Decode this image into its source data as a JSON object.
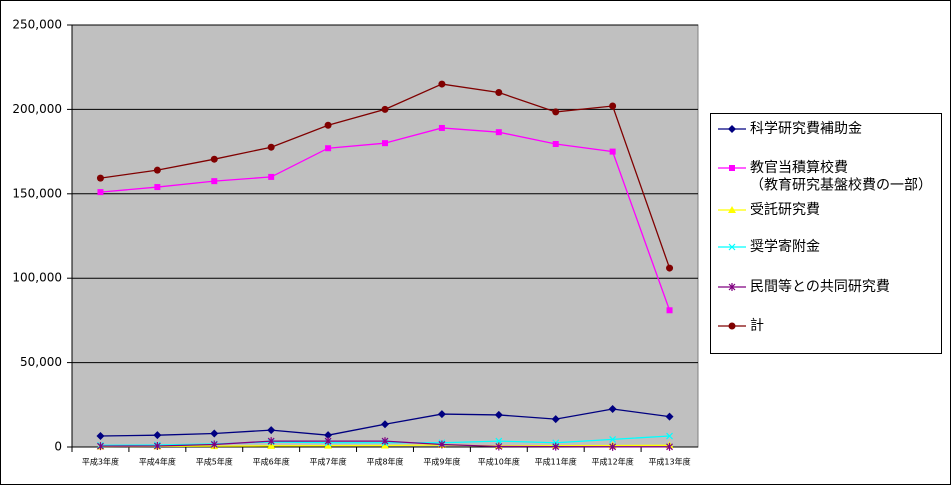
{
  "chart_data": {
    "type": "line",
    "categories": [
      "平成3年度",
      "平成4年度",
      "平成5年度",
      "平成6年度",
      "平成7年度",
      "平成8年度",
      "平成9年度",
      "平成10年度",
      "平成11年度",
      "平成12年度",
      "平成13年度"
    ],
    "ylim": [
      0,
      250000
    ],
    "yticks": [
      0,
      {
        "value": 50000,
        "label": "50,000"
      },
      {
        "value": 100000,
        "label": "100,000"
      },
      {
        "value": 150000,
        "label": "150,000"
      },
      {
        "value": 200000,
        "label": "200,000"
      },
      {
        "value": 250000,
        "label": "250,000"
      }
    ],
    "grid": true,
    "legend": "right",
    "series": [
      {
        "name": "科学研究費補助金",
        "color": "#000080",
        "marker": "diamond",
        "values": [
          6500,
          7000,
          8000,
          10000,
          7000,
          13500,
          19500,
          19000,
          16500,
          22500,
          18000
        ]
      },
      {
        "name": "教官当積算校費\n（教育研究基盤校費の一部）",
        "color": "#ff00ff",
        "marker": "square",
        "values": [
          151000,
          154000,
          157500,
          160000,
          177000,
          180000,
          189000,
          186500,
          179500,
          175000,
          81000
        ]
      },
      {
        "name": "受託研究費",
        "color": "#ffff00",
        "marker": "triangle",
        "values": [
          300,
          400,
          500,
          700,
          800,
          900,
          1200,
          600,
          800,
          900,
          1000
        ]
      },
      {
        "name": "奨学寄附金",
        "color": "#00ffff",
        "marker": "x",
        "values": [
          1000,
          1200,
          1800,
          3000,
          2500,
          2500,
          2500,
          3500,
          2500,
          4500,
          6500
        ]
      },
      {
        "name": "民間等との共同研究費",
        "color": "#800080",
        "marker": "star",
        "values": [
          500,
          600,
          1500,
          3500,
          3500,
          3500,
          1500,
          300,
          200,
          100,
          100
        ]
      },
      {
        "name": "計",
        "color": "#800000",
        "marker": "circle",
        "values": [
          159300,
          164000,
          170500,
          177600,
          190600,
          200000,
          215000,
          210000,
          198500,
          202000,
          106000
        ]
      }
    ]
  }
}
